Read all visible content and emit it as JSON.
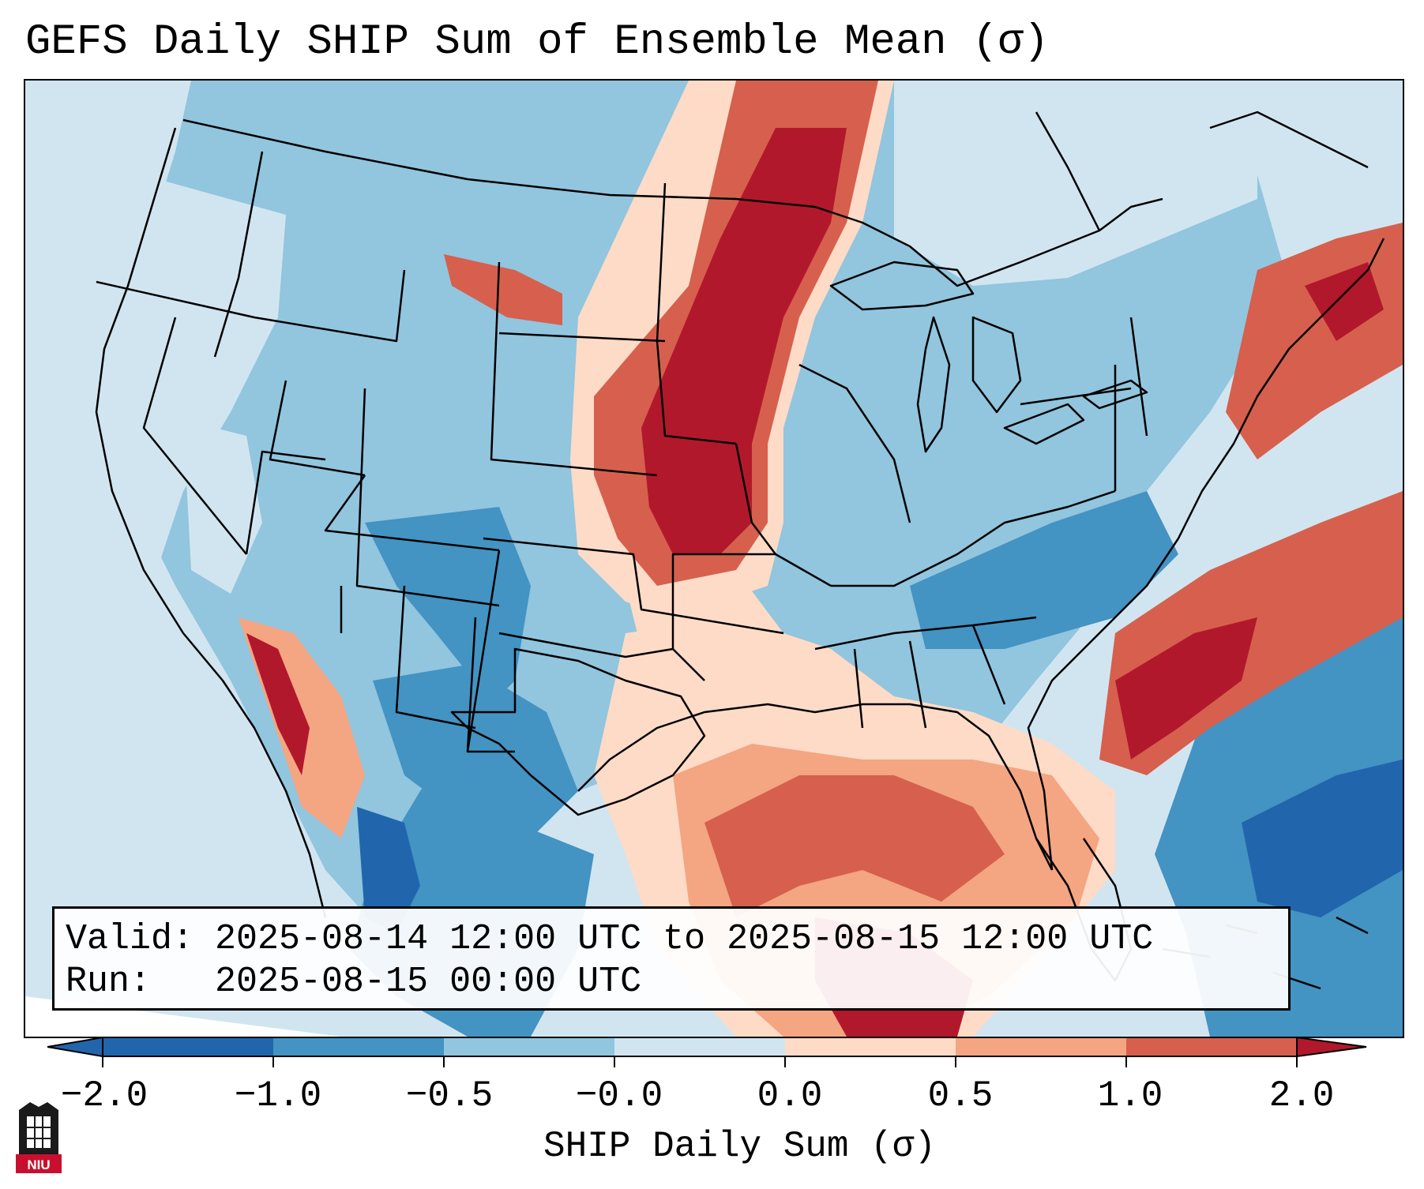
{
  "title": "GEFS Daily SHIP Sum of Ensemble Mean (σ)",
  "info": {
    "valid_line": "Valid: 2025-08-14 12:00 UTC to 2025-08-15 12:00 UTC",
    "run_line": "Run:   2025-08-15 00:00 UTC"
  },
  "colorbar": {
    "label": "SHIP Daily Sum (σ)",
    "ticks": [
      "−2.0",
      "−1.0",
      "−0.5",
      "−0.0",
      "0.0",
      "0.5",
      "1.0",
      "2.0"
    ],
    "colors": [
      "#2166ac",
      "#4393c3",
      "#92c5de",
      "#d1e5f0",
      "#fddbc7",
      "#f4a582",
      "#d6604d",
      "#b2182b"
    ],
    "extend": "both"
  },
  "map": {
    "projection": "Lambert Conformal Conic",
    "region": "Contiguous United States",
    "ocean_color": "#d1e5f0"
  },
  "logo": {
    "text": "NIU"
  }
}
